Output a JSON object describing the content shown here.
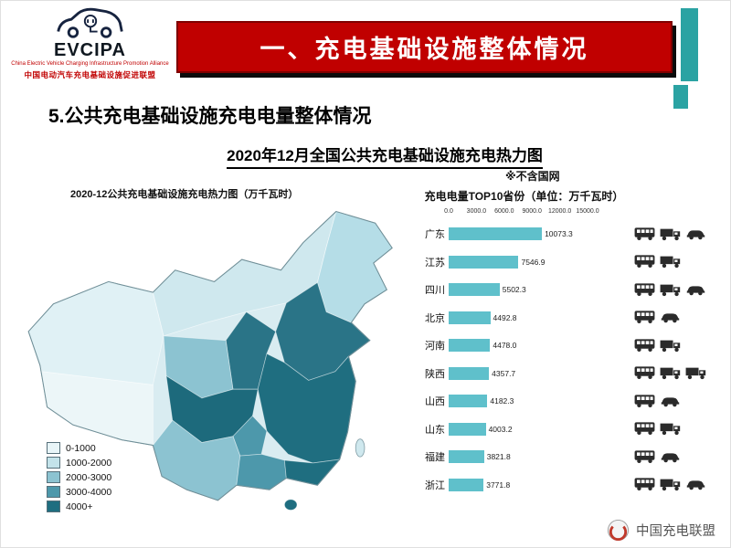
{
  "header": {
    "logo": {
      "brand": "EVCIPA",
      "subtitle_en": "China Electric Vehicle Charging Infrastructure Promotion Alliance",
      "subtitle_cn": "中国电动汽车充电基础设施促进联盟"
    },
    "banner_title": "一、充电基础设施整体情况",
    "banner_color": "#c00000",
    "accent_color": "#2ba3a3"
  },
  "section_title": "5.公共充电基础设施充电电量整体情况",
  "page_title": "2020年12月全国公共充电基础设施充电热力图",
  "note": "※不含国网",
  "map": {
    "title": "2020-12公共充电基础设施充电热力图（万千瓦时）",
    "legend": [
      {
        "label": "0-1000",
        "color": "#e8f5f8"
      },
      {
        "label": "1000-2000",
        "color": "#c3e3ea"
      },
      {
        "label": "2000-3000",
        "color": "#8cc3d1"
      },
      {
        "label": "3000-4000",
        "color": "#4d98ab"
      },
      {
        "label": "4000+",
        "color": "#1f6e80"
      }
    ]
  },
  "chart_data": {
    "type": "bar",
    "orientation": "horizontal",
    "title": "充电电量TOP10省份（单位：万千瓦时）",
    "categories": [
      "广东",
      "江苏",
      "四川",
      "北京",
      "河南",
      "陕西",
      "山西",
      "山东",
      "福建",
      "浙江"
    ],
    "values": [
      10073.3,
      7546.9,
      5502.3,
      4492.8,
      4478.0,
      4357.7,
      4182.3,
      4003.2,
      3821.8,
      3771.8
    ],
    "value_labels": [
      "10073.3",
      "7546.9",
      "5502.3",
      "4492.8",
      "4478.0",
      "4357.7",
      "4182.3",
      "4003.2",
      "3821.8",
      "3771.8"
    ],
    "x_ticks": [
      "0.0",
      "3000.0",
      "6000.0",
      "9000.0",
      "12000.0",
      "15000.0"
    ],
    "xlim": [
      0,
      15000
    ],
    "bar_color": "#5fc0cb",
    "legend_position": "none",
    "grid": false
  },
  "vehicle_rows": [
    [
      "bus",
      "truck",
      "car"
    ],
    [
      "bus",
      "truck"
    ],
    [
      "bus",
      "truck",
      "car"
    ],
    [
      "bus",
      "car"
    ],
    [
      "bus",
      "truck"
    ],
    [
      "bus",
      "truck",
      "truck"
    ],
    [
      "bus",
      "car"
    ],
    [
      "bus",
      "truck"
    ],
    [
      "bus",
      "car"
    ],
    [
      "bus",
      "truck",
      "car"
    ]
  ],
  "watermark": "中国充电联盟"
}
